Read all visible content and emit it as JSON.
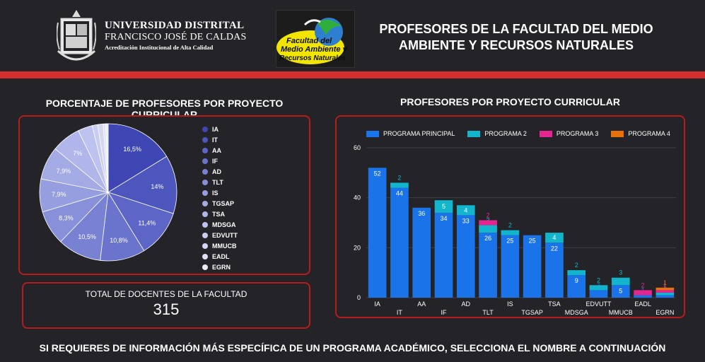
{
  "header": {
    "university_name": "UNIVERSIDAD DISTRITAL",
    "university_subtitle": "FRANCISCO JOSÉ DE CALDAS",
    "accreditation": "Acreditación Institucional de Alta Calidad",
    "faculty_logo_text": [
      "Facultad del",
      "Medio Ambiente y",
      "Recursos Naturales"
    ],
    "title_line1": "PROFESORES DE LA FACULTAD DEL MEDIO",
    "title_line2": "AMBIENTE Y RECURSOS NATURALES"
  },
  "colors": {
    "accent_red": "#d32f2f",
    "background": "#242428",
    "series": [
      "#1a73e8",
      "#12b5cb",
      "#e52592",
      "#e8710a"
    ]
  },
  "pie_section": {
    "title": "PORCENTAJE DE PROFESORES POR PROYECTO CURRICULAR"
  },
  "bar_section": {
    "title": "PROFESORES POR PROYECTO CURRICULAR"
  },
  "total": {
    "label": "TOTAL DE DOCENTES DE LA FACULTAD",
    "value": "315"
  },
  "footer": {
    "text": "SI REQUIERES DE INFORMACIÓN MÁS ESPECÍFICA DE UN PROGRAMA ACADÉMICO, SELECCIONA EL NOMBRE A CONTINUACIÓN"
  },
  "chart_data": [
    {
      "type": "pie",
      "title": "PORCENTAJE DE PROFESORES POR PROYECTO CURRICULAR",
      "categories": [
        "IA",
        "IT",
        "AA",
        "IF",
        "AD",
        "TLT",
        "IS",
        "TGSAP",
        "TSA",
        "MDSGA",
        "EDVUTT",
        "MMUCB",
        "EADL",
        "EGRN"
      ],
      "values": [
        16.5,
        14.0,
        11.4,
        10.8,
        10.5,
        8.3,
        7.9,
        7.9,
        7.0,
        3.5,
        1.3,
        1.3,
        0.6,
        0.6
      ],
      "labels": [
        "16,5%",
        "14%",
        "11,4%",
        "10,8%",
        "10,5%",
        "8,3%",
        "7,9%",
        "7,9%",
        "7%",
        "",
        "",
        "",
        "",
        ""
      ],
      "colors": [
        "#3d46b3",
        "#4d56bd",
        "#5d66c6",
        "#6b74cc",
        "#7982d2",
        "#8790d8",
        "#969edf",
        "#a3aae4",
        "#b0b6e9",
        "#bdc2ee",
        "#c9cdf1",
        "#d4d7f4",
        "#dfe1f7",
        "#ebecfa"
      ],
      "legend_position": "right"
    },
    {
      "type": "bar",
      "stacked": true,
      "title": "PROFESORES POR PROYECTO CURRICULAR",
      "categories": [
        "IA",
        "IT",
        "AA",
        "IF",
        "AD",
        "TLT",
        "IS",
        "TGSAP",
        "TSA",
        "MDSGA",
        "EDVUTT",
        "MMUCB",
        "EADL",
        "EGRN"
      ],
      "series": [
        {
          "name": "PROGRAMA PRINCIPAL",
          "values": [
            52,
            44,
            36,
            34,
            33,
            26,
            25,
            25,
            22,
            9,
            3,
            5,
            1,
            1
          ]
        },
        {
          "name": "PROGRAMA 2",
          "values": [
            0,
            2,
            0,
            5,
            4,
            3,
            2,
            0,
            4,
            2,
            2,
            3,
            0,
            1
          ]
        },
        {
          "name": "PROGRAMA 3",
          "values": [
            0,
            0,
            0,
            0,
            0,
            2,
            0,
            0,
            0,
            0,
            0,
            0,
            2,
            1
          ]
        },
        {
          "name": "PROGRAMA 4",
          "values": [
            0,
            0,
            0,
            0,
            0,
            0,
            0,
            0,
            0,
            0,
            0,
            0,
            0,
            1
          ]
        }
      ],
      "ylim": [
        0,
        60
      ],
      "yticks": [
        0,
        20,
        40,
        60
      ],
      "grid": true,
      "legend_position": "top"
    }
  ]
}
